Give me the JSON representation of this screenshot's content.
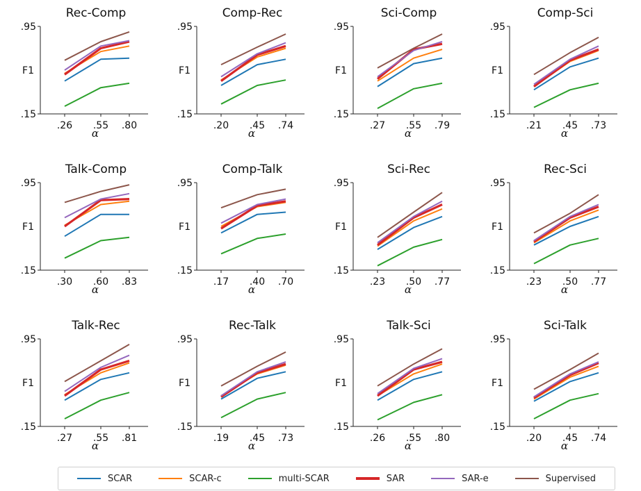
{
  "colors": {
    "SCAR": "#1f77b4",
    "SCAR-c": "#ff7f0e",
    "multi-SCAR": "#2ca02c",
    "SAR": "#d62728",
    "SAR-e": "#9467bd",
    "Supervised": "#8c564b"
  },
  "legend": {
    "items": [
      {
        "label": "SCAR",
        "key": "SCAR"
      },
      {
        "label": "SCAR-c",
        "key": "SCAR-c"
      },
      {
        "label": "multi-SCAR",
        "key": "multi-SCAR"
      },
      {
        "label": "SAR",
        "key": "SAR"
      },
      {
        "label": "SAR-e",
        "key": "SAR-e"
      },
      {
        "label": "Supervised",
        "key": "Supervised"
      }
    ]
  },
  "chart_data": [
    {
      "type": "line",
      "title": "Rec-Comp",
      "xlabel": "α",
      "ylabel": "F1",
      "ytick_labels": [
        ".15",
        ".95"
      ],
      "ylim": [
        0.15,
        0.95
      ],
      "x": [
        ".26",
        ".55",
        ".80"
      ],
      "series": [
        {
          "name": "SCAR",
          "values": [
            0.45,
            0.65,
            0.66
          ]
        },
        {
          "name": "SCAR-c",
          "values": [
            0.52,
            0.72,
            0.77
          ]
        },
        {
          "name": "multi-SCAR",
          "values": [
            0.22,
            0.39,
            0.43
          ]
        },
        {
          "name": "SAR",
          "values": [
            0.51,
            0.75,
            0.81
          ]
        },
        {
          "name": "SAR-e",
          "values": [
            0.55,
            0.77,
            0.82
          ]
        },
        {
          "name": "Supervised",
          "values": [
            0.64,
            0.81,
            0.9
          ]
        }
      ]
    },
    {
      "type": "line",
      "title": "Comp-Rec",
      "xlabel": "α",
      "ylabel": "F1",
      "ytick_labels": [
        ".15",
        ".95"
      ],
      "ylim": [
        0.15,
        0.95
      ],
      "x": [
        ".20",
        ".45",
        ".74"
      ],
      "series": [
        {
          "name": "SCAR",
          "values": [
            0.41,
            0.6,
            0.65
          ]
        },
        {
          "name": "SCAR-c",
          "values": [
            0.46,
            0.67,
            0.75
          ]
        },
        {
          "name": "multi-SCAR",
          "values": [
            0.24,
            0.41,
            0.46
          ]
        },
        {
          "name": "SAR",
          "values": [
            0.45,
            0.69,
            0.77
          ]
        },
        {
          "name": "SAR-e",
          "values": [
            0.49,
            0.7,
            0.8
          ]
        },
        {
          "name": "Supervised",
          "values": [
            0.6,
            0.76,
            0.88
          ]
        }
      ]
    },
    {
      "type": "line",
      "title": "Sci-Comp",
      "xlabel": "α",
      "ylabel": "F1",
      "ytick_labels": [
        ".15",
        ".95"
      ],
      "ylim": [
        0.15,
        0.95
      ],
      "x": [
        ".27",
        ".55",
        ".79"
      ],
      "series": [
        {
          "name": "SCAR",
          "values": [
            0.4,
            0.61,
            0.66
          ]
        },
        {
          "name": "SCAR-c",
          "values": [
            0.45,
            0.66,
            0.74
          ]
        },
        {
          "name": "multi-SCAR",
          "values": [
            0.2,
            0.38,
            0.43
          ]
        },
        {
          "name": "SAR",
          "values": [
            0.47,
            0.74,
            0.79
          ]
        },
        {
          "name": "SAR-e",
          "values": [
            0.49,
            0.73,
            0.81
          ]
        },
        {
          "name": "Supervised",
          "values": [
            0.57,
            0.75,
            0.88
          ]
        }
      ]
    },
    {
      "type": "line",
      "title": "Comp-Sci",
      "xlabel": "α",
      "ylabel": "F1",
      "ytick_labels": [
        ".15",
        ".95"
      ],
      "ylim": [
        0.15,
        0.95
      ],
      "x": [
        ".21",
        ".45",
        ".73"
      ],
      "series": [
        {
          "name": "SCAR",
          "values": [
            0.37,
            0.58,
            0.66
          ]
        },
        {
          "name": "SCAR-c",
          "values": [
            0.4,
            0.63,
            0.73
          ]
        },
        {
          "name": "multi-SCAR",
          "values": [
            0.21,
            0.37,
            0.43
          ]
        },
        {
          "name": "SAR",
          "values": [
            0.4,
            0.64,
            0.74
          ]
        },
        {
          "name": "SAR-e",
          "values": [
            0.42,
            0.65,
            0.77
          ]
        },
        {
          "name": "Supervised",
          "values": [
            0.51,
            0.71,
            0.85
          ]
        }
      ]
    },
    {
      "type": "line",
      "title": "Talk-Comp",
      "xlabel": "α",
      "ylabel": "F1",
      "ytick_labels": [
        ".15",
        ".95"
      ],
      "ylim": [
        0.15,
        0.95
      ],
      "x": [
        ".30",
        ".60",
        ".83"
      ],
      "series": [
        {
          "name": "SCAR",
          "values": [
            0.46,
            0.66,
            0.66
          ]
        },
        {
          "name": "SCAR-c",
          "values": [
            0.56,
            0.75,
            0.78
          ]
        },
        {
          "name": "multi-SCAR",
          "values": [
            0.26,
            0.42,
            0.45
          ]
        },
        {
          "name": "SAR",
          "values": [
            0.55,
            0.79,
            0.8
          ]
        },
        {
          "name": "SAR-e",
          "values": [
            0.63,
            0.8,
            0.85
          ]
        },
        {
          "name": "Supervised",
          "values": [
            0.77,
            0.87,
            0.93
          ]
        }
      ]
    },
    {
      "type": "line",
      "title": "Comp-Talk",
      "xlabel": "α",
      "ylabel": "F1",
      "ytick_labels": [
        ".15",
        ".95"
      ],
      "ylim": [
        0.15,
        0.95
      ],
      "x": [
        ".17",
        ".40",
        ".70"
      ],
      "series": [
        {
          "name": "SCAR",
          "values": [
            0.49,
            0.66,
            0.68
          ]
        },
        {
          "name": "SCAR-c",
          "values": [
            0.55,
            0.73,
            0.77
          ]
        },
        {
          "name": "multi-SCAR",
          "values": [
            0.3,
            0.44,
            0.48
          ]
        },
        {
          "name": "SAR",
          "values": [
            0.53,
            0.74,
            0.78
          ]
        },
        {
          "name": "SAR-e",
          "values": [
            0.58,
            0.75,
            0.8
          ]
        },
        {
          "name": "Supervised",
          "values": [
            0.72,
            0.84,
            0.89
          ]
        }
      ]
    },
    {
      "type": "line",
      "title": "Sci-Rec",
      "xlabel": "α",
      "ylabel": "F1",
      "ytick_labels": [
        ".15",
        ".95"
      ],
      "ylim": [
        0.15,
        0.95
      ],
      "x": [
        ".23",
        ".50",
        ".77"
      ],
      "series": [
        {
          "name": "SCAR",
          "values": [
            0.34,
            0.54,
            0.64
          ]
        },
        {
          "name": "SCAR-c",
          "values": [
            0.37,
            0.6,
            0.71
          ]
        },
        {
          "name": "multi-SCAR",
          "values": [
            0.19,
            0.36,
            0.43
          ]
        },
        {
          "name": "SAR",
          "values": [
            0.38,
            0.63,
            0.75
          ]
        },
        {
          "name": "SAR-e",
          "values": [
            0.4,
            0.64,
            0.78
          ]
        },
        {
          "name": "Supervised",
          "values": [
            0.45,
            0.68,
            0.86
          ]
        }
      ]
    },
    {
      "type": "line",
      "title": "Rec-Sci",
      "xlabel": "α",
      "ylabel": "F1",
      "ytick_labels": [
        ".15",
        ".95"
      ],
      "ylim": [
        0.15,
        0.95
      ],
      "x": [
        ".23",
        ".50",
        ".77"
      ],
      "series": [
        {
          "name": "SCAR",
          "values": [
            0.38,
            0.55,
            0.64
          ]
        },
        {
          "name": "SCAR-c",
          "values": [
            0.4,
            0.6,
            0.7
          ]
        },
        {
          "name": "multi-SCAR",
          "values": [
            0.21,
            0.38,
            0.44
          ]
        },
        {
          "name": "SAR",
          "values": [
            0.41,
            0.63,
            0.73
          ]
        },
        {
          "name": "SAR-e",
          "values": [
            0.42,
            0.64,
            0.75
          ]
        },
        {
          "name": "Supervised",
          "values": [
            0.49,
            0.67,
            0.84
          ]
        }
      ]
    },
    {
      "type": "line",
      "title": "Talk-Rec",
      "xlabel": "α",
      "ylabel": "F1",
      "ytick_labels": [
        ".15",
        ".95"
      ],
      "ylim": [
        0.15,
        0.95
      ],
      "x": [
        ".27",
        ".55",
        ".81"
      ],
      "series": [
        {
          "name": "SCAR",
          "values": [
            0.39,
            0.58,
            0.64
          ]
        },
        {
          "name": "SCAR-c",
          "values": [
            0.44,
            0.64,
            0.73
          ]
        },
        {
          "name": "multi-SCAR",
          "values": [
            0.22,
            0.39,
            0.46
          ]
        },
        {
          "name": "SAR",
          "values": [
            0.43,
            0.67,
            0.75
          ]
        },
        {
          "name": "SAR-e",
          "values": [
            0.47,
            0.69,
            0.8
          ]
        },
        {
          "name": "Supervised",
          "values": [
            0.56,
            0.75,
            0.9
          ]
        }
      ]
    },
    {
      "type": "line",
      "title": "Rec-Talk",
      "xlabel": "α",
      "ylabel": "F1",
      "ytick_labels": [
        ".15",
        ".95"
      ],
      "ylim": [
        0.15,
        0.95
      ],
      "x": [
        ".19",
        ".45",
        ".73"
      ],
      "series": [
        {
          "name": "SCAR",
          "values": [
            0.4,
            0.59,
            0.65
          ]
        },
        {
          "name": "SCAR-c",
          "values": [
            0.43,
            0.63,
            0.71
          ]
        },
        {
          "name": "multi-SCAR",
          "values": [
            0.23,
            0.4,
            0.46
          ]
        },
        {
          "name": "SAR",
          "values": [
            0.42,
            0.64,
            0.72
          ]
        },
        {
          "name": "SAR-e",
          "values": [
            0.43,
            0.65,
            0.74
          ]
        },
        {
          "name": "Supervised",
          "values": [
            0.52,
            0.7,
            0.83
          ]
        }
      ]
    },
    {
      "type": "line",
      "title": "Talk-Sci",
      "xlabel": "α",
      "ylabel": "F1",
      "ytick_labels": [
        ".15",
        ".95"
      ],
      "ylim": [
        0.15,
        0.95
      ],
      "x": [
        ".26",
        ".55",
        ".80"
      ],
      "series": [
        {
          "name": "SCAR",
          "values": [
            0.39,
            0.58,
            0.65
          ]
        },
        {
          "name": "SCAR-c",
          "values": [
            0.43,
            0.63,
            0.72
          ]
        },
        {
          "name": "multi-SCAR",
          "values": [
            0.21,
            0.37,
            0.44
          ]
        },
        {
          "name": "SAR",
          "values": [
            0.43,
            0.67,
            0.74
          ]
        },
        {
          "name": "SAR-e",
          "values": [
            0.45,
            0.68,
            0.77
          ]
        },
        {
          "name": "Supervised",
          "values": [
            0.52,
            0.72,
            0.86
          ]
        }
      ]
    },
    {
      "type": "line",
      "title": "Sci-Talk",
      "xlabel": "α",
      "ylabel": "F1",
      "ytick_labels": [
        ".15",
        ".95"
      ],
      "ylim": [
        0.15,
        0.95
      ],
      "x": [
        ".20",
        ".45",
        ".74"
      ],
      "series": [
        {
          "name": "SCAR",
          "values": [
            0.38,
            0.56,
            0.64
          ]
        },
        {
          "name": "SCAR-c",
          "values": [
            0.4,
            0.6,
            0.7
          ]
        },
        {
          "name": "multi-SCAR",
          "values": [
            0.22,
            0.39,
            0.45
          ]
        },
        {
          "name": "SAR",
          "values": [
            0.41,
            0.62,
            0.73
          ]
        },
        {
          "name": "SAR-e",
          "values": [
            0.42,
            0.63,
            0.74
          ]
        },
        {
          "name": "Supervised",
          "values": [
            0.49,
            0.67,
            0.82
          ]
        }
      ]
    }
  ]
}
